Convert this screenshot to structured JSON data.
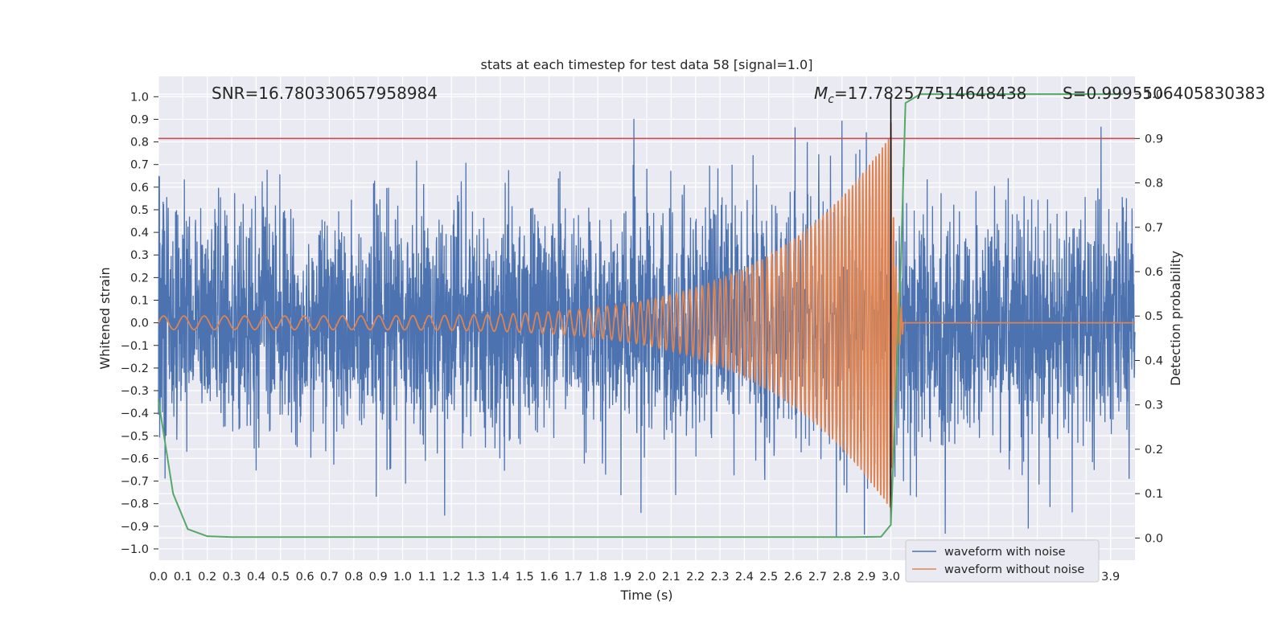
{
  "chart_data": {
    "type": "line",
    "title": "stats at each timestep for test data 58 [signal=1.0]",
    "xlabel": "Time (s)",
    "ylabel": "Whitened strain",
    "ylabel_right": "Detection probability",
    "xlim": [
      0.0,
      4.0
    ],
    "ylim": [
      -1.05,
      1.09
    ],
    "ylim_right": [
      -0.05,
      1.04
    ],
    "x_ticks": [
      "0.0",
      "0.1",
      "0.2",
      "0.3",
      "0.4",
      "0.5",
      "0.6",
      "0.7",
      "0.8",
      "0.9",
      "1.0",
      "1.1",
      "1.2",
      "1.3",
      "1.4",
      "1.5",
      "1.6",
      "1.7",
      "1.8",
      "1.9",
      "2.0",
      "2.1",
      "2.2",
      "2.3",
      "2.4",
      "2.5",
      "2.6",
      "2.7",
      "2.8",
      "2.9",
      "3.0",
      "3.1",
      "3.2",
      "3.3",
      "3.4",
      "3.5",
      "3.6",
      "3.7",
      "3.8",
      "3.9"
    ],
    "y_ticks": [
      "1.0",
      "0.9",
      "0.8",
      "0.7",
      "0.6",
      "0.5",
      "0.4",
      "0.3",
      "0.2",
      "0.1",
      "0.0",
      "−0.1",
      "−0.2",
      "−0.3",
      "−0.4",
      "−0.5",
      "−0.6",
      "−0.7",
      "−0.8",
      "−0.9",
      "−1.0"
    ],
    "y_ticks_right": [
      "1.0",
      "0.9",
      "0.8",
      "0.7",
      "0.6",
      "0.5",
      "0.4",
      "0.3",
      "0.2",
      "0.1",
      "0.0"
    ],
    "annotations": {
      "snr": "SNR=16.780330657958984",
      "mc_symbol": "M",
      "mc_sub": "c",
      "mc_value": "=17.782577514648438",
      "s_value": "S=0.9995506405830383"
    },
    "threshold_right": 0.9,
    "merger_time": 3.0,
    "series": [
      {
        "name": "waveform with noise",
        "color": "#4c72b0",
        "noise_amplitude": 0.3
      },
      {
        "name": "waveform without noise",
        "color": "#dd8452",
        "start_amplitude": 0.03,
        "peak_amplitude": 0.83,
        "start_freq": 12,
        "end_freq": 80,
        "merger_end": 3.05
      },
      {
        "name": "detection probability",
        "color": "#55a868",
        "axis": "right",
        "x": [
          0.0,
          0.06,
          0.12,
          0.2,
          0.3,
          0.5,
          1.0,
          2.0,
          2.5,
          2.85,
          2.96,
          3.0,
          3.04,
          3.06,
          3.12,
          3.3,
          3.95
        ],
        "values": [
          0.31,
          0.1,
          0.02,
          0.004,
          0.002,
          0.002,
          0.002,
          0.002,
          0.002,
          0.002,
          0.003,
          0.03,
          0.6,
          0.98,
          1.0,
          1.0,
          1.0
        ]
      },
      {
        "name": "threshold",
        "color": "#c44e52",
        "axis": "right"
      }
    ],
    "legend": [
      "waveform with noise",
      "waveform without noise"
    ],
    "legend_position": "lower-right",
    "grid": true
  }
}
